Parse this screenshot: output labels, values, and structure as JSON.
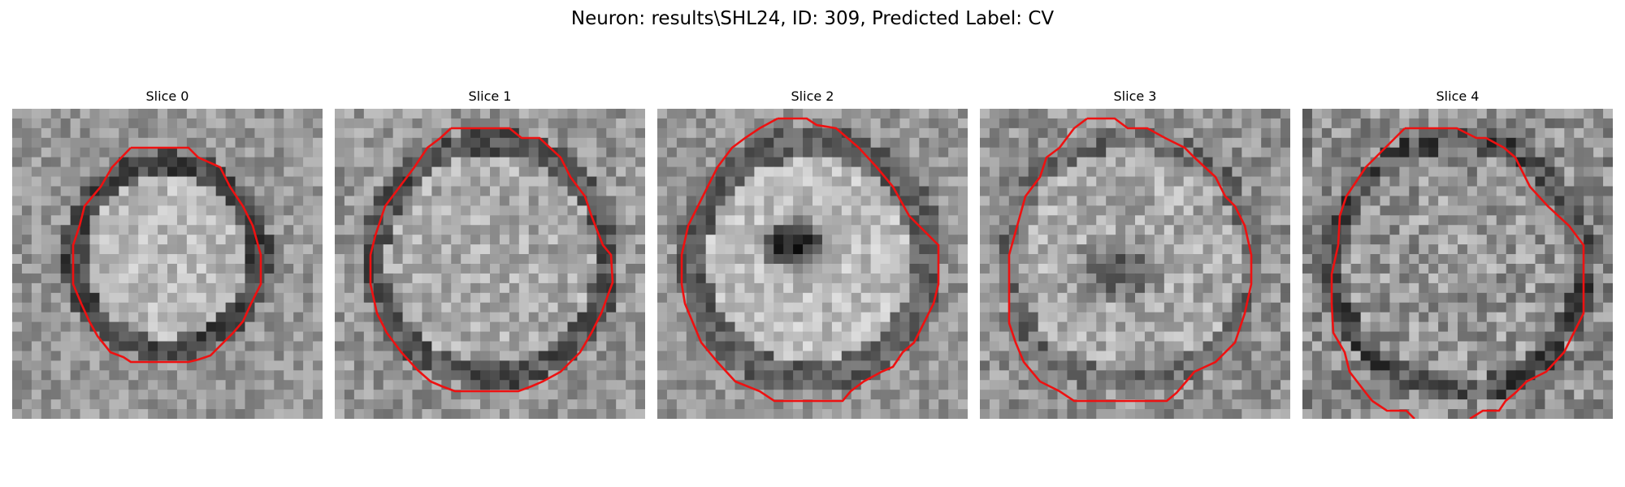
{
  "figure": {
    "title": "Neuron: results\\SHL24, ID: 309, Predicted Label: CV"
  },
  "panels": [
    {
      "title": "Slice 0"
    },
    {
      "title": "Slice 1"
    },
    {
      "title": "Slice 2"
    },
    {
      "title": "Slice 3"
    },
    {
      "title": "Slice 4"
    }
  ],
  "colors": {
    "contour": "#ee1111",
    "background": "#ffffff"
  }
}
